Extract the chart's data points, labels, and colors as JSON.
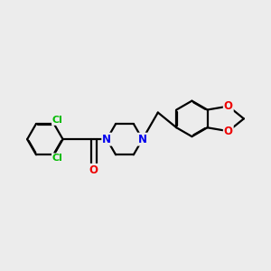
{
  "background_color": "#ececec",
  "bond_color": "#000000",
  "atom_colors": {
    "Cl": "#00bb00",
    "N": "#0000ee",
    "O": "#ee0000",
    "C": "#000000"
  },
  "bond_width": 1.6,
  "figsize": [
    3.0,
    3.0
  ],
  "dpi": 100
}
